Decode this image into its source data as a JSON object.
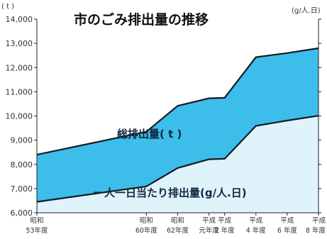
{
  "chart_data": {
    "type": "area",
    "title": "市のごみ排出量の推移",
    "y_unit": "( t )",
    "y2_unit": "(g/人.日)",
    "ylim": [
      6000,
      14000
    ],
    "yticks": [
      6000,
      7000,
      8000,
      9000,
      10000,
      11000,
      12000,
      13000,
      14000
    ],
    "ytick_labels": [
      "6,000",
      "7,000",
      "8,000",
      "9,000",
      "10,000",
      "11,000",
      "12,000",
      "13,000",
      "14,000"
    ],
    "categories": [
      [
        "昭和",
        "53年度"
      ],
      [
        "昭和",
        "60年度"
      ],
      [
        "昭和",
        "62年度"
      ],
      [
        "平成",
        "元年度"
      ],
      [
        "平成",
        "2 年度"
      ],
      [
        "平成",
        "4 年度"
      ],
      [
        "平成",
        "6 年度"
      ],
      [
        "平成",
        "8 年度"
      ]
    ],
    "x_positions": [
      1978,
      1985,
      1987,
      1989,
      1990,
      1992,
      1994,
      1996
    ],
    "series": [
      {
        "name": "総排出量( t )",
        "values": [
          8400,
          9350,
          10420,
          10730,
          10750,
          12430,
          12600,
          12800
        ],
        "color": "#3dbdea"
      },
      {
        "name": "一人一日当たり排出量(g/人.日)",
        "values": [
          6450,
          7090,
          7850,
          8210,
          8230,
          9590,
          9810,
          10010
        ],
        "color": "#dff3fb"
      }
    ],
    "grid": false
  }
}
